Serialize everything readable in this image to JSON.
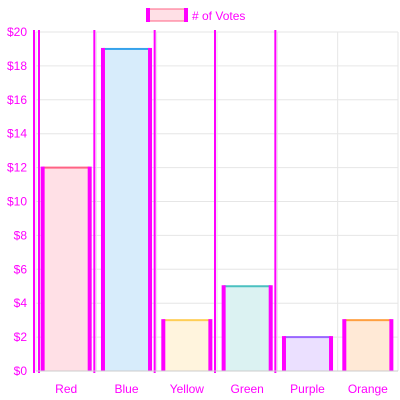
{
  "chart_data": {
    "type": "bar",
    "categories": [
      "Red",
      "Blue",
      "Yellow",
      "Green",
      "Purple",
      "Orange"
    ],
    "series": [
      {
        "name": "# of Votes",
        "values": [
          12,
          19,
          3,
          5,
          2,
          3
        ]
      }
    ],
    "ylim": [
      0,
      20
    ],
    "yticks": [
      "$0",
      "$2",
      "$4",
      "$6",
      "$8",
      "$10",
      "$12",
      "$14",
      "$16",
      "$18",
      "$20"
    ],
    "grid": true,
    "legend_position": "top-center",
    "bar_fill_colors": [
      "#ffe0e6",
      "#d7ecfb",
      "#fff4dd",
      "#dbf2f2",
      "#ebe0ff",
      "#ffe9d6"
    ],
    "bar_top_colors": [
      "#ff6384",
      "#36a2eb",
      "#ffce56",
      "#4bc0c0",
      "#9966ff",
      "#ff9f40"
    ],
    "highlight_color": "#ff00ff",
    "grid_color": "#e6e6e6",
    "legend_swatch_fill": "#ffe0e6"
  }
}
